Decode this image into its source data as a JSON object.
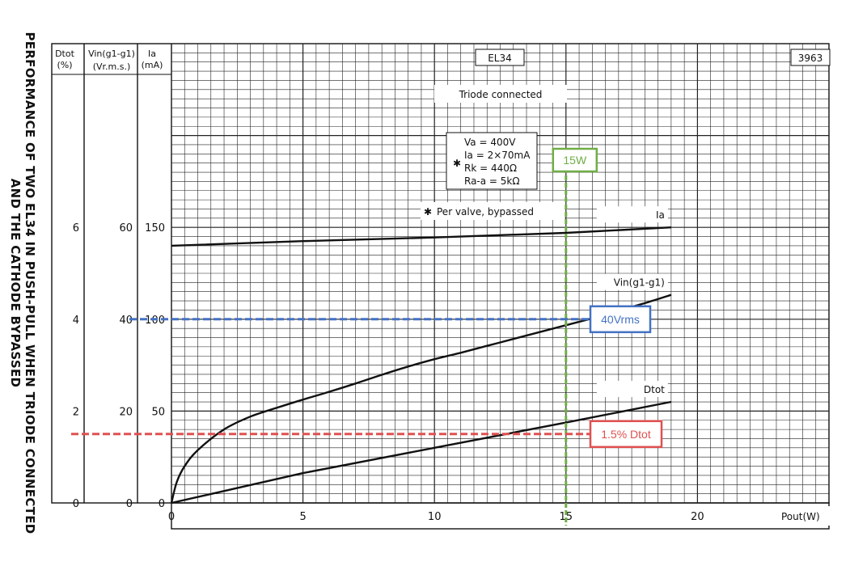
{
  "page": {
    "title_line1": "PERFORMANCE OF TWO EL34 IN PUSH-PULL WHEN TRIODE CONNECTED",
    "title_line2": "AND THE CATHODE BYPASSED"
  },
  "chart_data": {
    "type": "line",
    "tube_label": "EL34",
    "figure_number": "3963",
    "subtitle": "Triode connected",
    "conditions": [
      "Va = 400V",
      "Ia = 2×70mA",
      "Rk = 440Ω",
      "Ra-a = 5kΩ"
    ],
    "conditions_marker": "✱",
    "footnote": "Per valve, bypassed",
    "x_axis": {
      "label": "Pout(W)",
      "range": [
        0,
        25
      ],
      "ticks": [
        0,
        5,
        10,
        15,
        20
      ]
    },
    "y_axes": [
      {
        "header_line1": "Dtot",
        "header_line2": "(%)",
        "range": [
          0,
          10
        ],
        "ticks": [
          0,
          2,
          4,
          6
        ]
      },
      {
        "header_line1": "Vin(g1-g1)",
        "header_line2": "(Vr.m.s.)",
        "range": [
          0,
          100
        ],
        "ticks": [
          0,
          20,
          40,
          60
        ]
      },
      {
        "header_line1": "Ia",
        "header_line2": "(mA)",
        "range": [
          0,
          250
        ],
        "ticks": [
          0,
          50,
          100,
          150
        ]
      }
    ],
    "series": [
      {
        "name": "Ia",
        "axis": 2,
        "x": [
          0,
          5,
          10,
          15,
          19
        ],
        "y": [
          140,
          142.5,
          144.5,
          147,
          150
        ]
      },
      {
        "name": "Vin(g1-g1)",
        "axis": 1,
        "x": [
          0,
          0.2,
          0.5,
          1,
          2,
          3,
          4,
          5,
          6,
          7,
          8,
          9,
          10,
          11,
          12,
          13,
          14,
          15,
          16,
          17,
          18,
          19
        ],
        "y": [
          0,
          4.5,
          8,
          11.5,
          16,
          18.8,
          20.7,
          22.5,
          24.2,
          26,
          27.9,
          29.7,
          31.3,
          32.7,
          34.2,
          35.7,
          37.2,
          38.7,
          40.2,
          41.9,
          43.5,
          45.3
        ]
      },
      {
        "name": "Dtot",
        "axis": 0,
        "x": [
          0,
          5,
          10,
          15,
          19
        ],
        "y": [
          0,
          0.65,
          1.2,
          1.75,
          2.2
        ]
      }
    ],
    "annotations": [
      {
        "label": "15W",
        "kind": "vertical",
        "x": 15,
        "color": "#70ad47"
      },
      {
        "label": "40Vrms",
        "kind": "horizontal",
        "axis": 1,
        "y": 40,
        "color": "#4472c4"
      },
      {
        "label": "1.5% Dtot",
        "kind": "horizontal",
        "axis": 0,
        "y": 1.5,
        "color": "#e05050"
      }
    ]
  }
}
